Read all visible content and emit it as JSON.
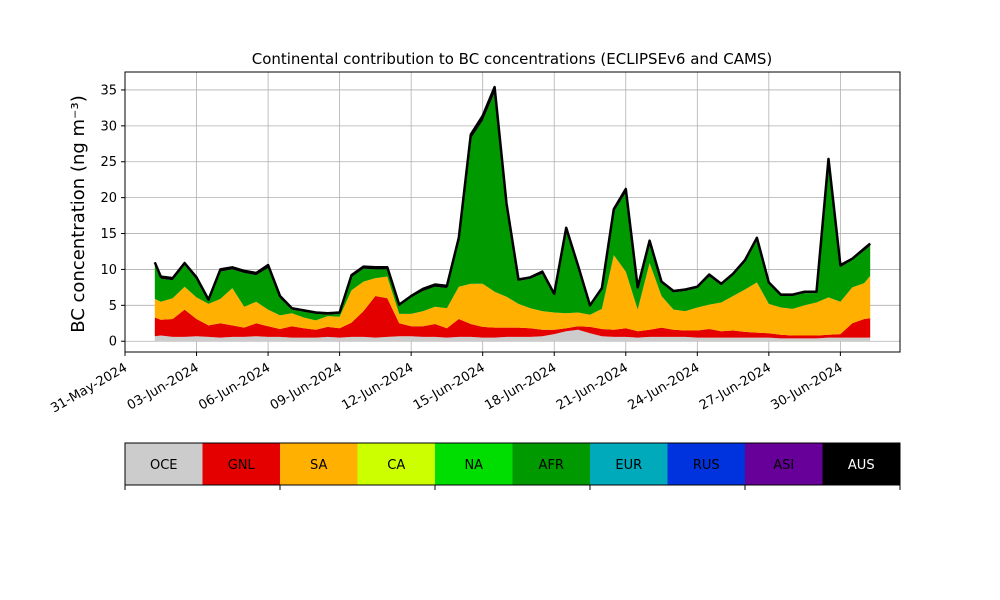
{
  "chart_data": {
    "type": "area",
    "stacked": true,
    "title": "Continental contribution to BC concentrations (ECLIPSEv6 and CAMS)",
    "xlabel": "",
    "ylabel": "BC concentration (ng m⁻³)",
    "ylim": [
      -1.5,
      37.5
    ],
    "xlim": [
      "2024-05-31T00:00",
      "2024-07-02T12:00"
    ],
    "grid": true,
    "yticks": [
      0,
      5,
      10,
      15,
      20,
      25,
      30,
      35
    ],
    "xticks": [
      "2024-05-31",
      "2024-06-03",
      "2024-06-06",
      "2024-06-09",
      "2024-06-12",
      "2024-06-15",
      "2024-06-18",
      "2024-06-21",
      "2024-06-24",
      "2024-06-27",
      "2024-06-30"
    ],
    "xtick_labels": [
      "31-May-2024",
      "03-Jun-2024",
      "06-Jun-2024",
      "09-Jun-2024",
      "12-Jun-2024",
      "15-Jun-2024",
      "18-Jun-2024",
      "21-Jun-2024",
      "24-Jun-2024",
      "27-Jun-2024",
      "30-Jun-2024"
    ],
    "x": [
      "2024-06-01T06:00",
      "2024-06-01T12:00",
      "2024-06-02T00:00",
      "2024-06-02T12:00",
      "2024-06-03T00:00",
      "2024-06-03T12:00",
      "2024-06-04T00:00",
      "2024-06-04T12:00",
      "2024-06-05T00:00",
      "2024-06-05T12:00",
      "2024-06-06T00:00",
      "2024-06-06T12:00",
      "2024-06-07T00:00",
      "2024-06-07T12:00",
      "2024-06-08T00:00",
      "2024-06-08T12:00",
      "2024-06-09T00:00",
      "2024-06-09T12:00",
      "2024-06-10T00:00",
      "2024-06-10T12:00",
      "2024-06-11T00:00",
      "2024-06-11T12:00",
      "2024-06-12T00:00",
      "2024-06-12T12:00",
      "2024-06-13T00:00",
      "2024-06-13T12:00",
      "2024-06-14T00:00",
      "2024-06-14T12:00",
      "2024-06-15T00:00",
      "2024-06-15T12:00",
      "2024-06-16T00:00",
      "2024-06-16T12:00",
      "2024-06-17T00:00",
      "2024-06-17T12:00",
      "2024-06-18T00:00",
      "2024-06-18T12:00",
      "2024-06-19T00:00",
      "2024-06-19T12:00",
      "2024-06-20T00:00",
      "2024-06-20T12:00",
      "2024-06-21T00:00",
      "2024-06-21T12:00",
      "2024-06-22T00:00",
      "2024-06-22T12:00",
      "2024-06-23T00:00",
      "2024-06-23T12:00",
      "2024-06-24T00:00",
      "2024-06-24T12:00",
      "2024-06-25T00:00",
      "2024-06-25T12:00",
      "2024-06-26T00:00",
      "2024-06-26T12:00",
      "2024-06-27T00:00",
      "2024-06-27T12:00",
      "2024-06-28T00:00",
      "2024-06-28T12:00",
      "2024-06-29T00:00",
      "2024-06-29T12:00",
      "2024-06-30T00:00",
      "2024-06-30T12:00",
      "2024-07-01T00:00",
      "2024-07-01T06:00"
    ],
    "series": [
      {
        "name": "OCE",
        "color": "#cccccc",
        "values": [
          0.7,
          0.8,
          0.6,
          0.6,
          0.7,
          0.6,
          0.5,
          0.6,
          0.6,
          0.7,
          0.6,
          0.6,
          0.5,
          0.5,
          0.5,
          0.6,
          0.5,
          0.6,
          0.6,
          0.5,
          0.6,
          0.7,
          0.7,
          0.6,
          0.6,
          0.5,
          0.6,
          0.6,
          0.5,
          0.5,
          0.6,
          0.6,
          0.6,
          0.7,
          1.0,
          1.4,
          1.6,
          1.1,
          0.7,
          0.6,
          0.6,
          0.5,
          0.6,
          0.6,
          0.6,
          0.6,
          0.5,
          0.5,
          0.5,
          0.5,
          0.5,
          0.5,
          0.5,
          0.4,
          0.4,
          0.4,
          0.4,
          0.5,
          0.5,
          0.5,
          0.5,
          0.5
        ]
      },
      {
        "name": "GNL",
        "color": "#e50000",
        "values": [
          2.6,
          2.2,
          2.5,
          3.8,
          2.4,
          1.6,
          2.0,
          1.6,
          1.3,
          1.8,
          1.5,
          1.1,
          1.6,
          1.3,
          1.1,
          1.4,
          1.3,
          2.0,
          3.6,
          5.8,
          5.4,
          1.8,
          1.4,
          1.5,
          1.8,
          1.3,
          2.5,
          1.8,
          1.5,
          1.4,
          1.3,
          1.3,
          1.2,
          0.9,
          0.6,
          0.4,
          0.5,
          0.9,
          1.0,
          1.0,
          1.2,
          0.9,
          1.0,
          1.3,
          1.0,
          0.9,
          1.0,
          1.2,
          0.9,
          1.0,
          0.8,
          0.7,
          0.6,
          0.5,
          0.4,
          0.4,
          0.4,
          0.4,
          0.5,
          2.0,
          2.6,
          2.7
        ]
      },
      {
        "name": "SA",
        "color": "#ffb000",
        "values": [
          2.6,
          2.5,
          2.9,
          3.2,
          3.0,
          3.0,
          3.4,
          5.2,
          2.9,
          3.0,
          2.3,
          1.9,
          1.8,
          1.5,
          1.3,
          1.5,
          1.6,
          4.5,
          4.1,
          2.5,
          3.0,
          1.3,
          1.7,
          2.1,
          2.4,
          2.8,
          4.5,
          5.6,
          6.0,
          5.0,
          4.3,
          3.3,
          2.8,
          2.6,
          2.4,
          2.1,
          1.9,
          1.7,
          2.8,
          10.4,
          7.9,
          3.0,
          9.3,
          4.4,
          2.8,
          2.7,
          3.2,
          3.4,
          4.0,
          4.8,
          5.9,
          7.0,
          4.1,
          3.8,
          3.7,
          4.2,
          4.6,
          5.2,
          4.5,
          5.0,
          5.0,
          5.9
        ]
      },
      {
        "name": "CA",
        "color": "#ccff00",
        "values": [
          0.0,
          0.0,
          0.0,
          0.0,
          0.0,
          0.0,
          0.0,
          0.0,
          0.0,
          0.0,
          0.0,
          0.0,
          0.0,
          0.0,
          0.0,
          0.0,
          0.0,
          0.0,
          0.0,
          0.0,
          0.0,
          0.0,
          0.0,
          0.0,
          0.0,
          0.0,
          0.0,
          0.0,
          0.0,
          0.0,
          0.0,
          0.0,
          0.0,
          0.0,
          0.0,
          0.0,
          0.0,
          0.0,
          0.0,
          0.0,
          0.0,
          0.0,
          0.0,
          0.0,
          0.0,
          0.0,
          0.0,
          0.0,
          0.0,
          0.0,
          0.0,
          0.0,
          0.0,
          0.0,
          0.0,
          0.0,
          0.0,
          0.0,
          0.0,
          0.0,
          0.0,
          0.0
        ]
      },
      {
        "name": "NA",
        "color": "#00dd00",
        "values": [
          0.0,
          0.0,
          0.0,
          0.0,
          0.0,
          0.0,
          0.0,
          0.0,
          0.0,
          0.0,
          0.0,
          0.0,
          0.0,
          0.0,
          0.0,
          0.0,
          0.0,
          0.0,
          0.0,
          0.0,
          0.0,
          0.0,
          0.0,
          0.0,
          0.0,
          0.0,
          0.0,
          0.0,
          0.0,
          0.0,
          0.0,
          0.0,
          0.0,
          0.0,
          0.0,
          0.0,
          0.0,
          0.0,
          0.0,
          0.0,
          0.0,
          0.0,
          0.0,
          0.0,
          0.0,
          0.0,
          0.0,
          0.0,
          0.0,
          0.0,
          0.0,
          0.0,
          0.0,
          0.0,
          0.0,
          0.0,
          0.0,
          0.0,
          0.0,
          0.0,
          0.0,
          0.0
        ]
      },
      {
        "name": "AFR",
        "color": "#009900",
        "values": [
          4.8,
          3.2,
          2.5,
          3.0,
          2.5,
          0.4,
          3.8,
          2.6,
          4.7,
          3.7,
          5.8,
          2.4,
          0.5,
          0.8,
          0.9,
          0.2,
          0.4,
          1.8,
          1.8,
          1.2,
          1.0,
          1.1,
          2.3,
          2.8,
          2.8,
          2.8,
          6.4,
          20.2,
          22.7,
          27.7,
          12.5,
          3.2,
          4.1,
          5.2,
          2.4,
          11.5,
          6.2,
          1.1,
          2.6,
          6.0,
          11.0,
          2.9,
          2.8,
          1.8,
          2.4,
          2.8,
          2.7,
          3.9,
          2.4,
          2.9,
          3.8,
          5.9,
          2.8,
          1.6,
          1.8,
          1.7,
          1.3,
          18.7,
          4.8,
          3.8,
          4.5,
          4.2
        ]
      },
      {
        "name": "EUR",
        "color": "#00aabb",
        "values": [
          0.0,
          0.0,
          0.0,
          0.0,
          0.0,
          0.0,
          0.0,
          0.0,
          0.0,
          0.0,
          0.0,
          0.0,
          0.0,
          0.0,
          0.0,
          0.0,
          0.0,
          0.0,
          0.0,
          0.0,
          0.0,
          0.0,
          0.0,
          0.0,
          0.0,
          0.0,
          0.0,
          0.0,
          0.0,
          0.0,
          0.0,
          0.0,
          0.0,
          0.0,
          0.0,
          0.0,
          0.0,
          0.0,
          0.0,
          0.0,
          0.0,
          0.0,
          0.0,
          0.0,
          0.0,
          0.0,
          0.0,
          0.0,
          0.0,
          0.0,
          0.0,
          0.0,
          0.0,
          0.0,
          0.0,
          0.0,
          0.0,
          0.0,
          0.0,
          0.0,
          0.0,
          0.0
        ]
      },
      {
        "name": "RUS",
        "color": "#0033dd",
        "values": [
          0.0,
          0.0,
          0.0,
          0.0,
          0.0,
          0.0,
          0.0,
          0.0,
          0.0,
          0.0,
          0.0,
          0.0,
          0.0,
          0.0,
          0.0,
          0.0,
          0.0,
          0.0,
          0.0,
          0.0,
          0.0,
          0.0,
          0.0,
          0.0,
          0.0,
          0.0,
          0.0,
          0.0,
          0.0,
          0.0,
          0.0,
          0.0,
          0.0,
          0.0,
          0.0,
          0.0,
          0.0,
          0.0,
          0.0,
          0.0,
          0.0,
          0.0,
          0.0,
          0.0,
          0.0,
          0.0,
          0.0,
          0.0,
          0.0,
          0.0,
          0.0,
          0.0,
          0.0,
          0.0,
          0.0,
          0.0,
          0.0,
          0.0,
          0.0,
          0.0,
          0.0,
          0.0
        ]
      },
      {
        "name": "ASI",
        "color": "#660099",
        "values": [
          0.0,
          0.0,
          0.0,
          0.0,
          0.0,
          0.0,
          0.0,
          0.0,
          0.0,
          0.0,
          0.0,
          0.0,
          0.0,
          0.0,
          0.0,
          0.0,
          0.0,
          0.0,
          0.0,
          0.0,
          0.0,
          0.0,
          0.0,
          0.0,
          0.0,
          0.0,
          0.0,
          0.0,
          0.0,
          0.0,
          0.0,
          0.0,
          0.0,
          0.0,
          0.0,
          0.0,
          0.0,
          0.0,
          0.0,
          0.0,
          0.0,
          0.0,
          0.0,
          0.0,
          0.0,
          0.0,
          0.0,
          0.0,
          0.0,
          0.0,
          0.0,
          0.0,
          0.0,
          0.0,
          0.0,
          0.0,
          0.0,
          0.0,
          0.0,
          0.0,
          0.0,
          0.0
        ]
      },
      {
        "name": "AUS",
        "color": "#000000",
        "values": [
          0.3,
          0.3,
          0.3,
          0.3,
          0.3,
          0.2,
          0.3,
          0.3,
          0.3,
          0.3,
          0.4,
          0.3,
          0.2,
          0.2,
          0.2,
          0.2,
          0.2,
          0.3,
          0.3,
          0.3,
          0.3,
          0.2,
          0.2,
          0.3,
          0.3,
          0.3,
          0.4,
          0.6,
          0.7,
          0.8,
          0.5,
          0.2,
          0.2,
          0.3,
          0.2,
          0.4,
          0.3,
          0.2,
          0.3,
          0.4,
          0.5,
          0.2,
          0.3,
          0.2,
          0.2,
          0.2,
          0.2,
          0.3,
          0.2,
          0.2,
          0.3,
          0.3,
          0.2,
          0.2,
          0.2,
          0.2,
          0.2,
          0.6,
          0.3,
          0.2,
          0.3,
          0.3
        ]
      }
    ]
  }
}
